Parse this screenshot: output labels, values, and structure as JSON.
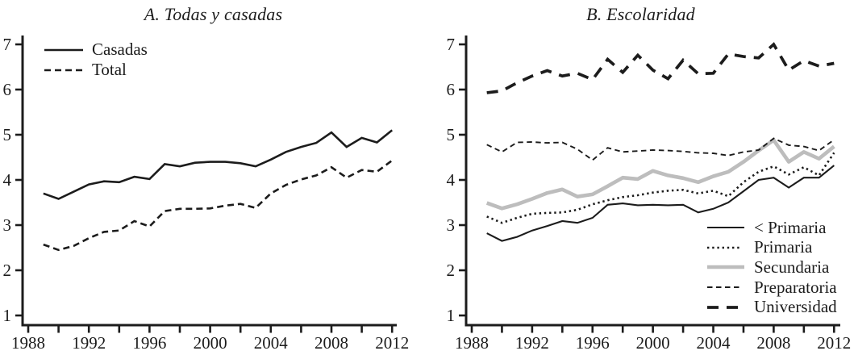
{
  "figure": {
    "background": "#ffffff",
    "text_color": "#1c1c1c",
    "gray_line_color": "#bdbdbd"
  },
  "chart_data": [
    {
      "type": "line",
      "title": "A. Todas y casadas",
      "xlabel": "",
      "ylabel": "",
      "ylim": [
        1,
        7
      ],
      "yticks": [
        1,
        2,
        3,
        4,
        5,
        6,
        7
      ],
      "xtick_range": [
        1988,
        2012
      ],
      "xticks_minor_step": 2,
      "xticks_labeled": [
        1988,
        1992,
        1996,
        2000,
        2004,
        2008,
        2012
      ],
      "grid": false,
      "legend_position": "top-left",
      "years": [
        1989,
        1990,
        1991,
        1992,
        1993,
        1994,
        1995,
        1996,
        1997,
        1998,
        1999,
        2000,
        2001,
        2002,
        2003,
        2004,
        2005,
        2006,
        2007,
        2008,
        2009,
        2010,
        2011,
        2012
      ],
      "series": [
        {
          "name": "Casadas",
          "style": "solid",
          "values": [
            3.7,
            3.58,
            3.74,
            3.9,
            3.97,
            3.95,
            4.07,
            4.02,
            4.35,
            4.3,
            4.38,
            4.4,
            4.4,
            4.37,
            4.3,
            4.45,
            4.62,
            4.73,
            4.82,
            5.05,
            4.73,
            4.93,
            4.83,
            5.1
          ]
        },
        {
          "name": "Total",
          "style": "dashed",
          "values": [
            2.57,
            2.45,
            2.54,
            2.71,
            2.85,
            2.88,
            3.09,
            2.97,
            3.31,
            3.36,
            3.36,
            3.37,
            3.43,
            3.47,
            3.38,
            3.7,
            3.89,
            4.01,
            4.1,
            4.28,
            4.05,
            4.22,
            4.18,
            4.43
          ]
        }
      ]
    },
    {
      "type": "line",
      "title": "B. Escolaridad",
      "xlabel": "",
      "ylabel": "",
      "ylim": [
        1,
        7
      ],
      "yticks": [
        1,
        2,
        3,
        4,
        5,
        6,
        7
      ],
      "xtick_range": [
        1988,
        2012
      ],
      "xticks_minor_step": 2,
      "xticks_labeled": [
        1988,
        1992,
        1996,
        2000,
        2004,
        2008,
        2012
      ],
      "grid": false,
      "legend_position": "bottom-right",
      "years": [
        1989,
        1990,
        1991,
        1992,
        1993,
        1994,
        1995,
        1996,
        1997,
        1998,
        1999,
        2000,
        2001,
        2002,
        2003,
        2004,
        2005,
        2006,
        2007,
        2008,
        2009,
        2010,
        2011,
        2012
      ],
      "series": [
        {
          "name": "< Primaria",
          "style": "thin",
          "values": [
            2.82,
            2.65,
            2.74,
            2.88,
            2.98,
            3.09,
            3.05,
            3.16,
            3.45,
            3.48,
            3.44,
            3.45,
            3.44,
            3.45,
            3.28,
            3.36,
            3.5,
            3.75,
            4.0,
            4.05,
            3.83,
            4.05,
            4.05,
            4.32
          ]
        },
        {
          "name": "Primaria",
          "style": "dotted",
          "values": [
            3.19,
            3.05,
            3.16,
            3.25,
            3.27,
            3.28,
            3.34,
            3.46,
            3.55,
            3.62,
            3.66,
            3.72,
            3.76,
            3.78,
            3.7,
            3.76,
            3.64,
            3.95,
            4.18,
            4.3,
            4.12,
            4.28,
            4.1,
            4.6
          ]
        },
        {
          "name": "Secundaria",
          "style": "gray",
          "values": [
            3.49,
            3.37,
            3.46,
            3.58,
            3.71,
            3.79,
            3.63,
            3.68,
            3.86,
            4.05,
            4.02,
            4.2,
            4.1,
            4.04,
            3.95,
            4.08,
            4.18,
            4.4,
            4.65,
            4.88,
            4.4,
            4.62,
            4.47,
            4.74
          ]
        },
        {
          "name": "Preparatoria",
          "style": "shortdash",
          "values": [
            4.78,
            4.62,
            4.83,
            4.84,
            4.82,
            4.83,
            4.68,
            4.44,
            4.71,
            4.62,
            4.64,
            4.66,
            4.65,
            4.63,
            4.6,
            4.59,
            4.54,
            4.62,
            4.66,
            4.92,
            4.77,
            4.74,
            4.65,
            4.89
          ]
        },
        {
          "name": "Universidad",
          "style": "longdash",
          "values": [
            5.93,
            5.97,
            6.15,
            6.3,
            6.42,
            6.3,
            6.36,
            6.22,
            6.67,
            6.38,
            6.76,
            6.43,
            6.24,
            6.65,
            6.35,
            6.36,
            6.79,
            6.73,
            6.7,
            7.0,
            6.43,
            6.64,
            6.52,
            6.58
          ]
        }
      ]
    }
  ]
}
